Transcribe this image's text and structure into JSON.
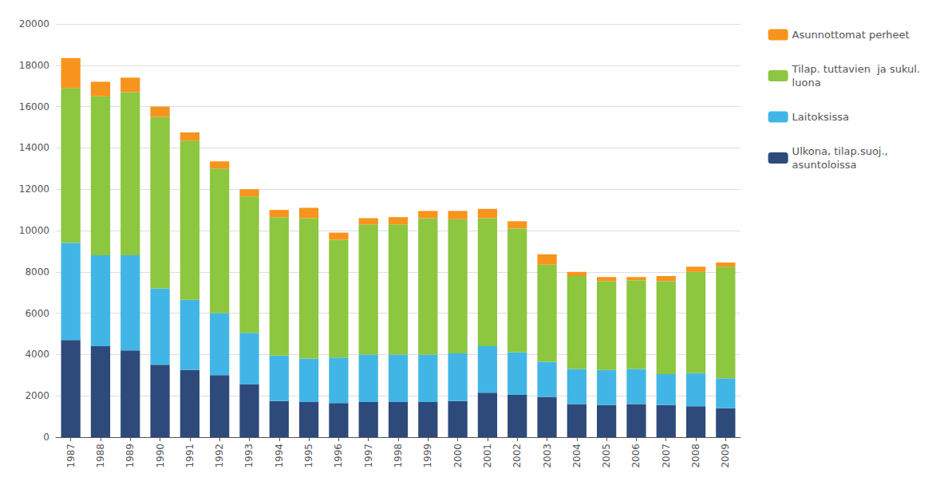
{
  "chart_data": {
    "type": "bar",
    "stacked": true,
    "categories": [
      "1987",
      "1988",
      "1989",
      "1990",
      "1991",
      "1992",
      "1993",
      "1994",
      "1995",
      "1996",
      "1997",
      "1998",
      "1999",
      "2000",
      "2001",
      "2002",
      "2003",
      "2004",
      "2005",
      "2006",
      "2007",
      "2008",
      "2009"
    ],
    "series": [
      {
        "name": "Ulkona, tilap.suoj.,\nasuntoloissa",
        "color": "#2E4A7A",
        "values": [
          4700,
          4400,
          4200,
          3500,
          3250,
          3000,
          2550,
          1750,
          1700,
          1650,
          1700,
          1700,
          1700,
          1750,
          2150,
          2050,
          1950,
          1600,
          1550,
          1600,
          1550,
          1500,
          1400
        ]
      },
      {
        "name": "Laitoksissa",
        "color": "#41B6E6",
        "values": [
          4700,
          4400,
          4600,
          3700,
          3400,
          3000,
          2500,
          2200,
          2100,
          2200,
          2300,
          2300,
          2300,
          2300,
          2250,
          2050,
          1700,
          1700,
          1700,
          1700,
          1500,
          1600,
          1450
        ]
      },
      {
        "name": "Tilap. tuttavien  ja sukul.\nluona",
        "color": "#8DC63F",
        "values": [
          7500,
          7700,
          7900,
          8300,
          7700,
          7000,
          6600,
          6700,
          6800,
          5700,
          6300,
          6300,
          6600,
          6500,
          6200,
          6000,
          4700,
          4500,
          4300,
          4300,
          4500,
          4900,
          5400
        ]
      },
      {
        "name": "Asunnottomat perheet",
        "color": "#F7941D",
        "values": [
          1450,
          700,
          700,
          500,
          400,
          350,
          350,
          350,
          500,
          350,
          300,
          350,
          350,
          400,
          450,
          350,
          500,
          200,
          200,
          150,
          250,
          250,
          200
        ]
      }
    ],
    "ylim": [
      0,
      20000
    ],
    "yticks": [
      0,
      2000,
      4000,
      6000,
      8000,
      10000,
      12000,
      14000,
      16000,
      18000,
      20000
    ],
    "grid": true,
    "legend": "upper right"
  }
}
